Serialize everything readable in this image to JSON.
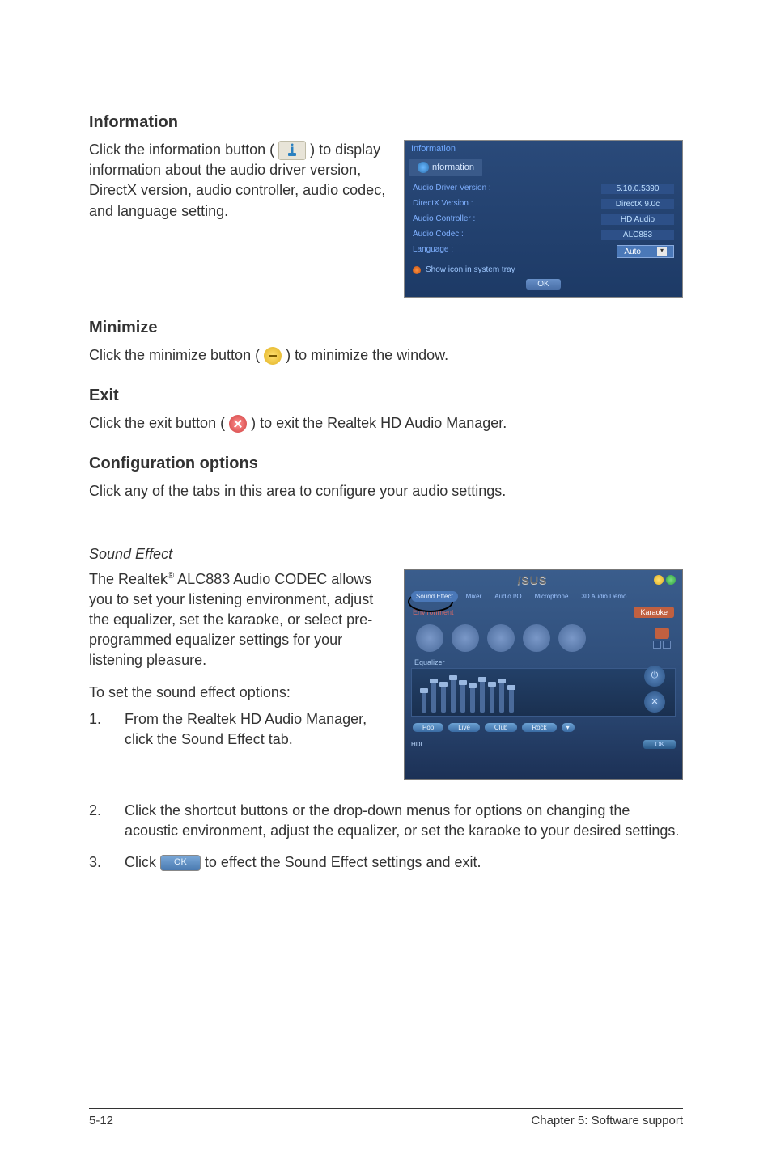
{
  "sections": {
    "information": {
      "heading": "Information",
      "body": "Click the information button (       ) to display information about the audio driver version, DirectX version, audio controller, audio codec, and language setting."
    },
    "minimize": {
      "heading": "Minimize",
      "body_pre": "Click the minimize button (",
      "body_post": ") to minimize the window."
    },
    "exit": {
      "heading": "Exit",
      "body_pre": "Click the exit button (",
      "body_post": ") to exit the Realtek HD Audio Manager."
    },
    "config": {
      "heading": "Configuration options",
      "body": "Click any of the tabs in this area to configure your audio settings."
    },
    "sound_effect": {
      "heading": "Sound Effect",
      "body_pre": "The Realtek",
      "body_sup": "®",
      "body_post": " ALC883 Audio CODEC allows you to set your listening environment, adjust the equalizer, set the karaoke, or select pre-programmed equalizer settings for your listening pleasure.",
      "intro": "To set the sound effect options:",
      "steps": {
        "s1": "From the Realtek HD Audio Manager, click the Sound Effect tab.",
        "s2": "Click the shortcut buttons or the drop-down menus for options on changing the acoustic environment, adjust the equalizer, or set the karaoke to your desired settings.",
        "s3_pre": "Click ",
        "s3_post": " to effect the Sound Effect settings and exit."
      }
    }
  },
  "info_panel": {
    "title": "Information",
    "tab": "nformation",
    "rows": {
      "driver": {
        "label": "Audio Driver Version :",
        "value": "5.10.0.5390"
      },
      "directx": {
        "label": "DirectX Version :",
        "value": "DirectX 9.0c"
      },
      "controller": {
        "label": "Audio Controller :",
        "value": "HD Audio"
      },
      "codec": {
        "label": "Audio Codec :",
        "value": "ALC883"
      },
      "language": {
        "label": "Language :",
        "value": "Auto"
      }
    },
    "checkbox": "Show icon in system tray",
    "ok": "OK"
  },
  "se_panel": {
    "logo": "/SUS",
    "tabs": {
      "t1": "Sound Effect",
      "t2": "Mixer",
      "t3": "Audio I/O",
      "t4": "Microphone",
      "t5": "3D Audio Demo"
    },
    "env": "Environment",
    "karaoke": "Karaoke",
    "equalizer": "Equalizer",
    "buttons": {
      "b1": "Pop",
      "b2": "Live",
      "b3": "Club",
      "b4": "Rock",
      "b5": ""
    },
    "help": "HDI",
    "ok": "OK",
    "slider_heights": [
      30,
      42,
      38,
      46,
      40,
      36,
      44,
      38,
      42,
      34
    ],
    "knob_positions": [
      18,
      26,
      22,
      30,
      24,
      20,
      28,
      22,
      26,
      18
    ]
  },
  "ok_inline": "OK",
  "footer": {
    "left": "5-12",
    "right": "Chapter 5: Software support"
  },
  "colors": {
    "panel_bg_top": "#2a4a7a",
    "panel_bg_bot": "#1d3a66",
    "accent_blue": "#6fa8ff",
    "accent_orange": "#c06040"
  }
}
